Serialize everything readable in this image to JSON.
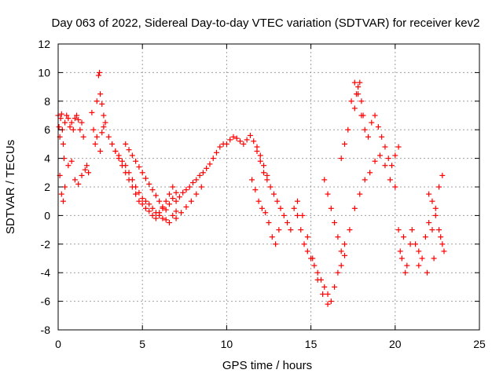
{
  "chart_data": {
    "type": "scatter",
    "title": "Day 063 of 2022, Sidereal Day-to-day VTEC variation (SDTVAR) for receiver kev2",
    "xlabel": "GPS time / hours",
    "ylabel": "SDTVAR / TECUs",
    "xlim": [
      0,
      25
    ],
    "ylim": [
      -8,
      12
    ],
    "xticks": [
      0,
      5,
      10,
      15,
      20,
      25
    ],
    "yticks": [
      -8,
      -6,
      -4,
      -2,
      0,
      2,
      4,
      6,
      8,
      10,
      12
    ],
    "grid": true,
    "marker": "+",
    "color": "#ff0000",
    "series": [
      {
        "name": "SDTVAR",
        "x": [
          0.0,
          0.05,
          0.1,
          0.15,
          0.2,
          0.25,
          0.3,
          0.35,
          0.4,
          0.5,
          0.6,
          0.7,
          0.8,
          0.9,
          1.0,
          1.1,
          1.2,
          1.3,
          1.4,
          1.5,
          0.1,
          0.2,
          0.3,
          0.4,
          0.6,
          0.8,
          1.0,
          1.2,
          1.4,
          1.6,
          1.7,
          1.8,
          2.0,
          2.1,
          2.2,
          2.3,
          2.4,
          2.45,
          2.5,
          2.6,
          2.7,
          2.8,
          2.3,
          2.5,
          2.6,
          2.7,
          3.0,
          3.2,
          3.4,
          3.6,
          3.8,
          4.0,
          4.2,
          4.4,
          4.6,
          4.8,
          5.0,
          5.2,
          5.4,
          5.6,
          5.8,
          6.0,
          6.2,
          6.4,
          6.6,
          6.8,
          7.0,
          3.4,
          3.6,
          3.8,
          4.0,
          4.2,
          4.4,
          4.6,
          4.8,
          5.0,
          5.2,
          5.4,
          5.6,
          5.8,
          6.0,
          6.2,
          6.4,
          6.6,
          6.8,
          4.0,
          4.2,
          4.4,
          4.6,
          4.8,
          5.0,
          5.2,
          5.4,
          5.6,
          5.8,
          6.0,
          6.2,
          6.4,
          6.6,
          6.8,
          7.0,
          7.0,
          7.2,
          7.4,
          7.6,
          7.8,
          8.0,
          8.2,
          8.4,
          8.6,
          8.8,
          9.0,
          9.2,
          9.4,
          9.6,
          9.8,
          7.0,
          7.3,
          7.6,
          7.9,
          8.2,
          8.5,
          10.0,
          10.2,
          10.4,
          10.6,
          10.8,
          11.0,
          11.2,
          11.4,
          11.6,
          11.8,
          12.0,
          12.2,
          12.4,
          11.8,
          12.0,
          12.2,
          12.4,
          12.6,
          12.8,
          13.0,
          13.2,
          13.4,
          13.6,
          13.8,
          11.5,
          11.7,
          11.9,
          12.1,
          12.3,
          12.5,
          12.7,
          12.9,
          13.1,
          14.0,
          14.2,
          14.4,
          14.6,
          14.8,
          15.0,
          15.2,
          15.4,
          15.6,
          15.8,
          16.0,
          16.2,
          16.4,
          16.6,
          16.8,
          17.0,
          14.2,
          14.5,
          14.8,
          15.1,
          15.4,
          15.7,
          16.0,
          15.8,
          16.0,
          16.2,
          16.4,
          16.6,
          16.8,
          16.8,
          17.0,
          17.2,
          17.4,
          17.6,
          17.8,
          18.0,
          18.2,
          18.4,
          18.6,
          18.8,
          19.0,
          19.2,
          19.4,
          19.6,
          19.8,
          20.0,
          20.2,
          17.6,
          17.7,
          17.8,
          17.9,
          18.0,
          18.1,
          17.0,
          17.3,
          17.6,
          17.9,
          18.2,
          18.5,
          18.8,
          19.1,
          19.4,
          19.7,
          20.0,
          20.2,
          20.3,
          20.4,
          20.5,
          20.6,
          20.7,
          21.0,
          21.2,
          21.4,
          21.6,
          21.8,
          22.0,
          22.2,
          22.4,
          22.6,
          22.8,
          22.9,
          20.9,
          21.4,
          21.9,
          22.3,
          22.7,
          22.0,
          22.2,
          22.4,
          22.6,
          22.8
        ],
        "y": [
          7.0,
          6.2,
          5.5,
          6.8,
          7.1,
          6.0,
          5.0,
          4.0,
          6.5,
          7.0,
          6.8,
          6.2,
          6.5,
          6.0,
          6.8,
          7.0,
          6.7,
          6.0,
          6.5,
          5.5,
          2.8,
          1.5,
          1.0,
          2.0,
          3.5,
          3.8,
          2.5,
          2.2,
          2.8,
          3.2,
          3.5,
          3.0,
          7.2,
          6.0,
          5.0,
          8.0,
          9.8,
          10.0,
          8.5,
          7.8,
          7.0,
          6.5,
          5.5,
          4.5,
          5.8,
          6.2,
          5.5,
          5.0,
          4.5,
          4.2,
          3.8,
          3.5,
          3.0,
          2.5,
          2.0,
          1.6,
          1.2,
          1.0,
          0.8,
          0.5,
          0.2,
          0.0,
          -0.2,
          -0.3,
          -0.5,
          0.0,
          0.3,
          4.5,
          4.0,
          3.5,
          3.0,
          2.5,
          2.0,
          1.5,
          1.0,
          0.8,
          0.5,
          0.3,
          0.0,
          -0.2,
          0.2,
          0.5,
          1.0,
          1.5,
          2.0,
          5.0,
          4.6,
          4.2,
          3.8,
          3.4,
          3.0,
          2.6,
          2.2,
          1.8,
          1.4,
          1.0,
          0.6,
          0.4,
          0.8,
          1.2,
          1.6,
          1.0,
          1.3,
          1.6,
          1.8,
          2.0,
          2.3,
          2.5,
          2.8,
          3.0,
          3.3,
          3.6,
          4.0,
          4.4,
          4.8,
          5.0,
          -0.2,
          0.2,
          0.6,
          1.0,
          1.5,
          2.0,
          5.0,
          5.3,
          5.5,
          5.4,
          5.2,
          5.0,
          5.3,
          5.6,
          5.2,
          4.8,
          4.2,
          3.5,
          2.8,
          4.5,
          3.8,
          3.0,
          2.5,
          2.0,
          1.5,
          1.0,
          0.5,
          0.0,
          -0.5,
          -1.0,
          2.5,
          1.8,
          1.0,
          0.5,
          0.2,
          -0.5,
          -1.5,
          -2.0,
          -1.0,
          0.5,
          0.0,
          -1.0,
          -2.0,
          -2.5,
          -3.0,
          -3.5,
          -4.0,
          -4.5,
          -5.0,
          -5.5,
          -6.0,
          -5.0,
          -4.0,
          -3.5,
          -2.8,
          1.0,
          0.0,
          -1.5,
          -3.0,
          -4.5,
          -5.5,
          -6.2,
          2.5,
          1.5,
          0.5,
          -0.5,
          -1.5,
          -2.5,
          4.0,
          5.0,
          6.0,
          8.0,
          9.3,
          8.5,
          7.0,
          6.0,
          5.5,
          6.5,
          7.0,
          6.2,
          5.5,
          4.8,
          4.0,
          3.5,
          4.2,
          4.8,
          7.5,
          8.5,
          9.0,
          9.3,
          8.0,
          7.0,
          -2.0,
          -1.0,
          0.5,
          1.5,
          2.5,
          3.0,
          3.8,
          4.2,
          3.5,
          2.5,
          2.0,
          -1.0,
          -2.5,
          -3.0,
          -1.5,
          -4.0,
          -3.5,
          -1.0,
          -2.0,
          -2.5,
          -3.0,
          -1.5,
          -0.5,
          -1.0,
          0.0,
          -1.0,
          -2.0,
          -2.5,
          -2.0,
          -3.5,
          -4.0,
          -3.0,
          -1.5,
          1.5,
          1.0,
          0.5,
          2.0,
          2.8
        ]
      }
    ]
  }
}
